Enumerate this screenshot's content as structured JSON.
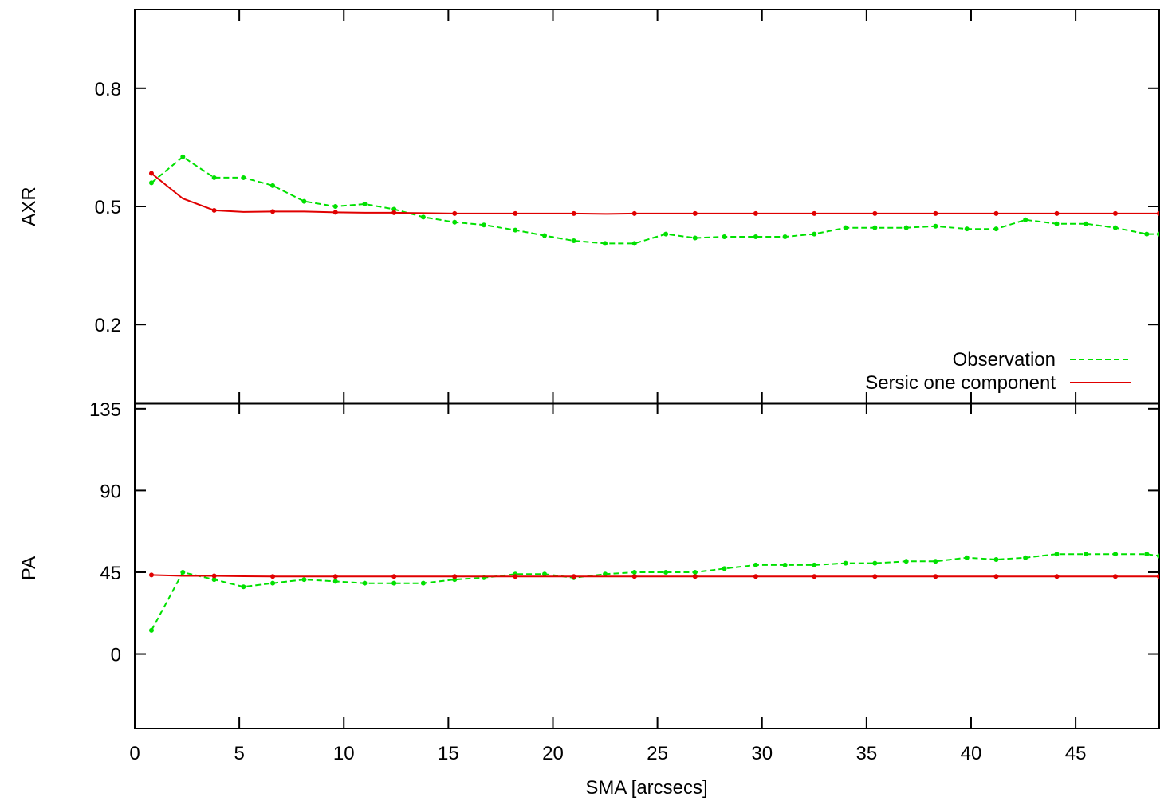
{
  "chart_data": [
    {
      "type": "line",
      "ylabel": "AXR",
      "ylim": [
        0.0,
        1.0
      ],
      "yticks": [
        "0.2",
        "0.5",
        "0.8"
      ],
      "xlim": [
        0,
        49
      ],
      "grid": false,
      "legend_position": "bottom-right",
      "series": [
        {
          "name": "Observation",
          "color": "#00e000",
          "style": "dashed",
          "x": [
            0.8,
            2.3,
            3.8,
            5.2,
            6.6,
            8.1,
            9.6,
            11.0,
            12.4,
            13.8,
            15.3,
            16.7,
            18.2,
            19.6,
            21.0,
            22.5,
            23.9,
            25.4,
            26.8,
            28.2,
            29.7,
            31.1,
            32.5,
            34.0,
            35.4,
            36.9,
            38.3,
            39.8,
            41.2,
            42.6,
            44.1,
            45.5,
            46.9,
            48.4,
            49.0
          ],
          "values": [
            0.56,
            0.626,
            0.573,
            0.573,
            0.553,
            0.513,
            0.5,
            0.506,
            0.493,
            0.473,
            0.46,
            0.453,
            0.44,
            0.426,
            0.413,
            0.406,
            0.406,
            0.43,
            0.42,
            0.423,
            0.423,
            0.423,
            0.43,
            0.446,
            0.446,
            0.446,
            0.45,
            0.443,
            0.443,
            0.466,
            0.456,
            0.456,
            0.446,
            0.43,
            0.43
          ]
        },
        {
          "name": "Sersic one component",
          "color": "#e00000",
          "style": "solid",
          "x": [
            0.8,
            2.3,
            3.8,
            5.2,
            6.6,
            8.1,
            9.6,
            11.0,
            12.4,
            13.8,
            15.3,
            16.7,
            18.2,
            19.6,
            21.0,
            22.5,
            23.9,
            25.4,
            26.8,
            28.2,
            29.7,
            31.1,
            32.5,
            34.0,
            35.4,
            36.9,
            38.3,
            39.8,
            41.2,
            42.6,
            44.1,
            45.5,
            46.9,
            48.4,
            49.0
          ],
          "values": [
            0.584,
            0.52,
            0.49,
            0.486,
            0.487,
            0.487,
            0.485,
            0.484,
            0.484,
            0.483,
            0.482,
            0.482,
            0.482,
            0.482,
            0.482,
            0.481,
            0.482,
            0.482,
            0.482,
            0.482,
            0.482,
            0.482,
            0.482,
            0.482,
            0.482,
            0.482,
            0.482,
            0.482,
            0.482,
            0.482,
            0.482,
            0.482,
            0.482,
            0.482,
            0.482
          ]
        }
      ]
    },
    {
      "type": "line",
      "ylabel": "PA",
      "xlabel": "SMA [arcsecs]",
      "ylim": [
        -41,
        138
      ],
      "yticks": [
        "0",
        "45",
        "90",
        "135"
      ],
      "xlim": [
        0,
        49
      ],
      "xticks": [
        "0",
        "5",
        "10",
        "15",
        "20",
        "25",
        "30",
        "35",
        "40",
        "45"
      ],
      "grid": false,
      "series": [
        {
          "name": "Observation",
          "color": "#00e000",
          "style": "dashed",
          "x": [
            0.8,
            2.3,
            3.8,
            5.2,
            6.6,
            8.1,
            9.6,
            11.0,
            12.4,
            13.8,
            15.3,
            16.7,
            18.2,
            19.6,
            21.0,
            22.5,
            23.9,
            25.4,
            26.8,
            28.2,
            29.7,
            31.1,
            32.5,
            34.0,
            35.4,
            36.9,
            38.3,
            39.8,
            41.2,
            42.6,
            44.1,
            45.5,
            46.9,
            48.4,
            49.0
          ],
          "values": [
            13,
            45,
            41,
            37,
            39,
            41,
            40,
            39,
            39,
            39,
            41,
            42,
            44,
            44,
            42,
            44,
            45,
            45,
            45,
            47,
            49,
            49,
            49,
            50,
            50,
            51,
            51,
            53,
            52,
            53,
            55,
            55,
            55,
            55,
            54
          ]
        },
        {
          "name": "Sersic one component",
          "color": "#e00000",
          "style": "solid",
          "x": [
            0.8,
            2.3,
            3.8,
            5.2,
            6.6,
            8.1,
            9.6,
            11.0,
            12.4,
            13.8,
            15.3,
            16.7,
            18.2,
            19.6,
            21.0,
            22.5,
            23.9,
            25.4,
            26.8,
            28.2,
            29.7,
            31.1,
            32.5,
            34.0,
            35.4,
            36.9,
            38.3,
            39.8,
            41.2,
            42.6,
            44.1,
            45.5,
            46.9,
            48.4,
            49.0
          ],
          "values": [
            43.5,
            43,
            43,
            42.8,
            42.7,
            42.7,
            42.7,
            42.7,
            42.7,
            42.7,
            42.7,
            42.7,
            42.7,
            42.7,
            42.7,
            42.7,
            42.7,
            42.7,
            42.7,
            42.7,
            42.7,
            42.7,
            42.7,
            42.7,
            42.7,
            42.7,
            42.7,
            42.7,
            42.7,
            42.7,
            42.7,
            42.7,
            42.7,
            42.7,
            42.7
          ]
        }
      ]
    }
  ]
}
